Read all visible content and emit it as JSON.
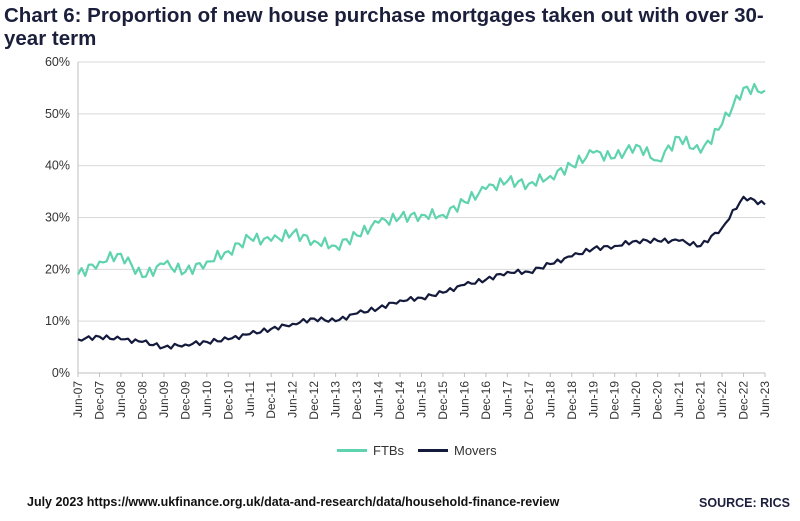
{
  "title": "Chart 6: Proportion of new house purchase mortgages taken out with over 30-year term",
  "footer": {
    "left": "July 2023 https://www.ukfinance.org.uk/data-and-research/data/household-finance-review",
    "right": "SOURCE: RICS"
  },
  "colors": {
    "ftbs": "#5fd3ae",
    "movers": "#141a3c",
    "grid": "#d9d9d9",
    "axis": "#bfbfbf"
  },
  "chart_data": {
    "type": "line",
    "title": "Chart 6: Proportion of new house purchase mortgages taken out with over 30-year term",
    "xlabel": "",
    "ylabel": "",
    "ylim": [
      0,
      60
    ],
    "yticks": [
      "0%",
      "10%",
      "20%",
      "30%",
      "40%",
      "50%",
      "60%"
    ],
    "grid": true,
    "legend_position": "bottom",
    "categories": [
      "Jun-07",
      "Dec-07",
      "Jun-08",
      "Dec-08",
      "Jun-09",
      "Dec-09",
      "Jun-10",
      "Dec-10",
      "Jun-11",
      "Dec-11",
      "Jun-12",
      "Dec-12",
      "Jun-13",
      "Dec-13",
      "Jun-14",
      "Dec-14",
      "Jun-15",
      "Dec-15",
      "Jun-16",
      "Dec-16",
      "Jun-17",
      "Dec-17",
      "Jun-18",
      "Dec-18",
      "Jun-19",
      "Dec-19",
      "Jun-20",
      "Dec-20",
      "Jun-21",
      "Dec-21",
      "Jun-22",
      "Dec-22",
      "Jun-23"
    ],
    "series": [
      {
        "name": "FTBs",
        "values": [
          19.0,
          21.5,
          23.0,
          18.5,
          21.0,
          19.5,
          21.5,
          23.5,
          26.0,
          25.5,
          27.0,
          25.5,
          24.5,
          26.5,
          29.0,
          30.0,
          30.5,
          30.5,
          33.0,
          35.5,
          37.0,
          36.5,
          38.0,
          40.0,
          42.5,
          41.5,
          44.0,
          41.0,
          45.5,
          42.5,
          48.0,
          55.0,
          54.5
        ]
      },
      {
        "name": "Movers",
        "values": [
          6.5,
          7.0,
          6.5,
          6.0,
          5.0,
          5.5,
          6.0,
          6.5,
          7.5,
          8.5,
          9.5,
          10.5,
          10.0,
          11.5,
          12.5,
          14.0,
          14.5,
          15.5,
          17.0,
          18.0,
          19.5,
          19.5,
          21.0,
          22.5,
          24.0,
          24.5,
          25.5,
          25.5,
          25.5,
          24.5,
          28.0,
          34.0,
          32.5
        ]
      }
    ]
  }
}
